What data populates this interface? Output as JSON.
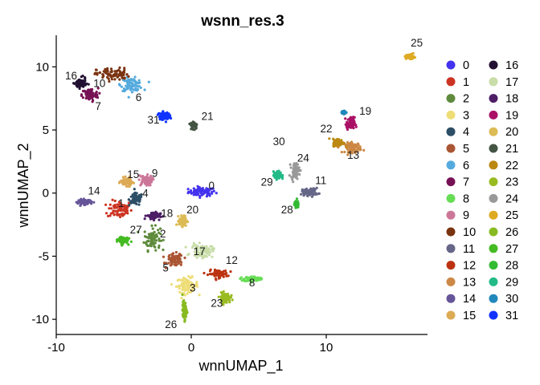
{
  "chart_data": {
    "type": "scatter",
    "title": "wsnn_res.3",
    "xlabel": "wnnUMAP_1",
    "ylabel": "wnnUMAP_2",
    "xlim": [
      -10,
      17.5
    ],
    "ylim": [
      -11.2,
      12.5
    ],
    "xticks": [
      -10,
      0,
      10
    ],
    "yticks": [
      -10,
      -5,
      0,
      5,
      10
    ],
    "grid": false,
    "legend": "right",
    "clusters": [
      {
        "name": "0",
        "color": "#4433EE",
        "centroid": [
          0.8,
          0.1
        ],
        "spread": [
          1.0,
          0.35
        ],
        "label_pos": [
          1.5,
          0.3
        ]
      },
      {
        "name": "1",
        "color": "#CC3322",
        "centroid": [
          -5.3,
          -1.3
        ],
        "spread": [
          0.9,
          0.7
        ],
        "label_pos": [
          -5.2,
          -1.1
        ]
      },
      {
        "name": "2",
        "color": "#5E8A3C",
        "centroid": [
          -2.9,
          -3.6
        ],
        "spread": [
          0.6,
          0.9
        ],
        "label_pos": [
          -2.1,
          -3.5
        ]
      },
      {
        "name": "3",
        "color": "#EEDD77",
        "centroid": [
          -0.3,
          -7.3
        ],
        "spread": [
          0.8,
          0.6
        ],
        "label_pos": [
          0.1,
          -7.8
        ]
      },
      {
        "name": "4",
        "color": "#2C4E66",
        "centroid": [
          -4.1,
          -0.5
        ],
        "spread": [
          0.5,
          0.5
        ],
        "label_pos": [
          -3.4,
          -0.3
        ]
      },
      {
        "name": "5",
        "color": "#AA5533",
        "centroid": [
          -1.2,
          -5.3
        ],
        "spread": [
          0.6,
          0.5
        ],
        "label_pos": [
          -1.9,
          -6.2
        ]
      },
      {
        "name": "6",
        "color": "#55AADD",
        "centroid": [
          -4.4,
          8.6
        ],
        "spread": [
          0.8,
          0.5
        ],
        "label_pos": [
          -3.9,
          7.3
        ]
      },
      {
        "name": "7",
        "color": "#771155",
        "centroid": [
          -7.5,
          7.8
        ],
        "spread": [
          0.6,
          0.5
        ],
        "label_pos": [
          -6.9,
          6.6
        ]
      },
      {
        "name": "8",
        "color": "#66DD55",
        "centroid": [
          4.5,
          -6.8
        ],
        "spread": [
          0.6,
          0.2
        ],
        "label_pos": [
          4.5,
          -7.4
        ]
      },
      {
        "name": "9",
        "color": "#CC7799",
        "centroid": [
          -3.4,
          1.0
        ],
        "spread": [
          0.5,
          0.4
        ],
        "label_pos": [
          -2.7,
          1.3
        ]
      },
      {
        "name": "10",
        "color": "#7A3311",
        "centroid": [
          -5.8,
          9.4
        ],
        "spread": [
          1.2,
          0.5
        ],
        "label_pos": [
          -6.8,
          8.4
        ]
      },
      {
        "name": "11",
        "color": "#666688",
        "centroid": [
          8.8,
          0.1
        ],
        "spread": [
          0.6,
          0.3
        ],
        "label_pos": [
          9.6,
          0.7
        ]
      },
      {
        "name": "12",
        "color": "#BB3311",
        "centroid": [
          2.0,
          -6.4
        ],
        "spread": [
          0.7,
          0.3
        ],
        "label_pos": [
          3.0,
          -5.6
        ]
      },
      {
        "name": "13",
        "color": "#CC8844",
        "centroid": [
          12.0,
          3.6
        ],
        "spread": [
          0.6,
          0.4
        ],
        "label_pos": [
          12.0,
          2.7
        ]
      },
      {
        "name": "14",
        "color": "#665599",
        "centroid": [
          -7.9,
          -0.7
        ],
        "spread": [
          0.5,
          0.2
        ],
        "label_pos": [
          -7.2,
          -0.1
        ]
      },
      {
        "name": "15",
        "color": "#DDAA55",
        "centroid": [
          -4.8,
          0.9
        ],
        "spread": [
          0.4,
          0.3
        ],
        "label_pos": [
          -4.3,
          1.2
        ]
      },
      {
        "name": "16",
        "color": "#221133",
        "centroid": [
          -8.2,
          8.7
        ],
        "spread": [
          0.4,
          0.4
        ],
        "label_pos": [
          -8.9,
          9.0
        ]
      },
      {
        "name": "17",
        "color": "#C8DDA8",
        "centroid": [
          0.8,
          -4.6
        ],
        "spread": [
          0.8,
          0.5
        ],
        "label_pos": [
          0.6,
          -4.9
        ]
      },
      {
        "name": "18",
        "color": "#4D1E66",
        "centroid": [
          -2.8,
          -1.8
        ],
        "spread": [
          0.5,
          0.3
        ],
        "label_pos": [
          -1.8,
          -1.9
        ]
      },
      {
        "name": "19",
        "color": "#AA1166",
        "centroid": [
          11.8,
          5.5
        ],
        "spread": [
          0.3,
          0.5
        ],
        "label_pos": [
          12.9,
          6.2
        ]
      },
      {
        "name": "20",
        "color": "#DDBB55",
        "centroid": [
          -0.6,
          -2.2
        ],
        "spread": [
          0.3,
          0.4
        ],
        "label_pos": [
          0.1,
          -1.6
        ]
      },
      {
        "name": "21",
        "color": "#445544",
        "centroid": [
          0.2,
          5.4
        ],
        "spread": [
          0.25,
          0.3
        ],
        "label_pos": [
          1.2,
          5.8
        ]
      },
      {
        "name": "22",
        "color": "#BB8811",
        "centroid": [
          10.9,
          4.0
        ],
        "spread": [
          0.4,
          0.3
        ],
        "label_pos": [
          10.0,
          4.8
        ]
      },
      {
        "name": "23",
        "color": "#99BB22",
        "centroid": [
          2.5,
          -8.3
        ],
        "spread": [
          0.4,
          0.4
        ],
        "label_pos": [
          1.9,
          -9.0
        ]
      },
      {
        "name": "24",
        "color": "#999999",
        "centroid": [
          7.7,
          1.8
        ],
        "spread": [
          0.3,
          0.6
        ],
        "label_pos": [
          8.3,
          2.5
        ]
      },
      {
        "name": "25",
        "color": "#DDAA22",
        "centroid": [
          16.2,
          10.8
        ],
        "spread": [
          0.3,
          0.2
        ],
        "label_pos": [
          16.7,
          11.6
        ]
      },
      {
        "name": "26",
        "color": "#88BB22",
        "centroid": [
          -0.5,
          -9.3
        ],
        "spread": [
          0.15,
          0.7
        ],
        "label_pos": [
          -1.5,
          -10.7
        ]
      },
      {
        "name": "27",
        "color": "#44BB22",
        "centroid": [
          -5.1,
          -3.7
        ],
        "spread": [
          0.4,
          0.3
        ],
        "label_pos": [
          -4.1,
          -3.2
        ]
      },
      {
        "name": "28",
        "color": "#33BB33",
        "centroid": [
          7.8,
          -0.9
        ],
        "spread": [
          0.15,
          0.25
        ],
        "label_pos": [
          7.1,
          -1.6
        ]
      },
      {
        "name": "29",
        "color": "#22BB88",
        "centroid": [
          6.4,
          1.4
        ],
        "spread": [
          0.3,
          0.3
        ],
        "label_pos": [
          5.6,
          0.6
        ]
      },
      {
        "name": "30",
        "color": "#2288BB",
        "centroid": [
          11.3,
          6.4
        ],
        "spread": [
          0.15,
          0.1
        ],
        "label_pos": [
          6.5,
          3.8
        ]
      },
      {
        "name": "31",
        "color": "#1133FF",
        "centroid": [
          -2.0,
          6.1
        ],
        "spread": [
          0.4,
          0.3
        ],
        "label_pos": [
          -2.8,
          5.5
        ]
      }
    ]
  }
}
